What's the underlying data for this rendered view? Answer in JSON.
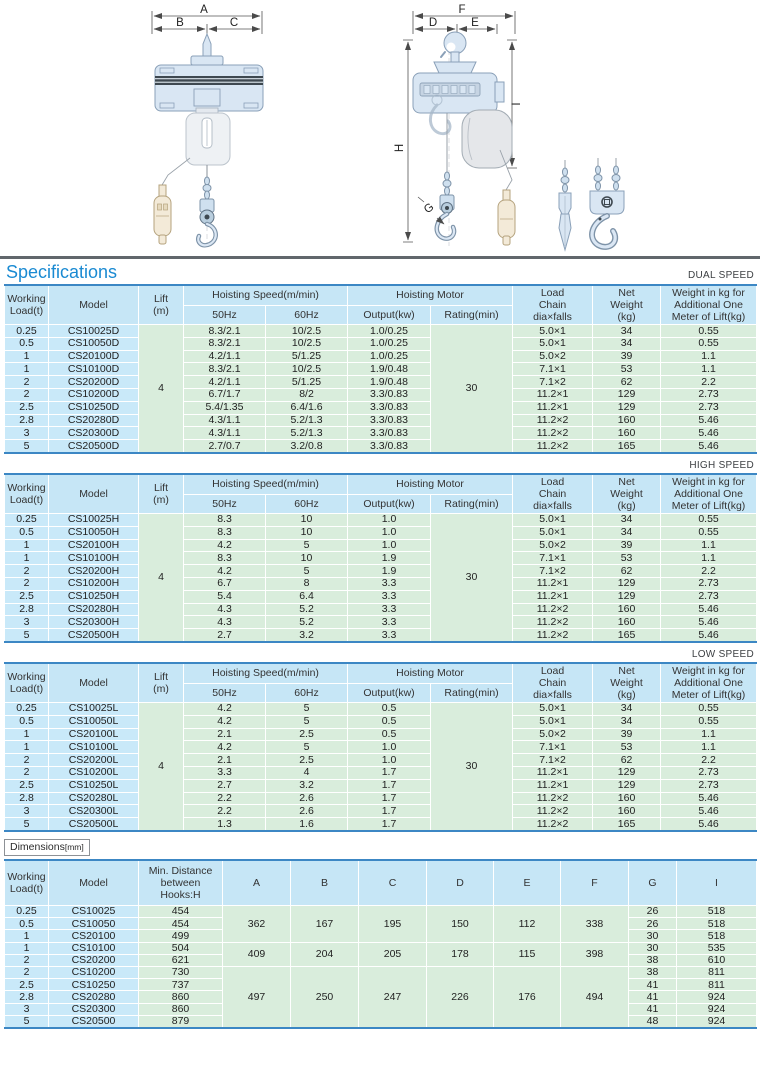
{
  "page": {
    "title": "Specifications",
    "dimensions_label": "Dimensions",
    "dimensions_unit": "[mm]"
  },
  "drawings": {
    "front": {
      "dim_total": "A",
      "dim_left": "B",
      "dim_right": "C"
    },
    "side": {
      "dim_total": "F",
      "dim_left": "D",
      "dim_right": "E",
      "dim_height": "H",
      "dim_side": "I",
      "dim_hook": "G"
    }
  },
  "spec_header": {
    "working_load": "Working Load(t)",
    "model": "Model",
    "lift": "Lift (m)",
    "hoisting_speed": "Hoisting Speed(m/min)",
    "hz50": "50Hz",
    "hz60": "60Hz",
    "hoisting_motor": "Hoisting Motor",
    "output": "Output(kw)",
    "rating": "Rating(min)",
    "load_chain": "Load Chain dia×falls",
    "net_weight": "Net Weight (kg)",
    "weight_additional": "Weight in kg for Additional One Meter of Lift(kg)"
  },
  "spec_tables": [
    {
      "id": "dual",
      "badge": "DUAL SPEED",
      "lift": "4",
      "rating": "30",
      "rows": [
        [
          "0.25",
          "CS10025D",
          "8.3/2.1",
          "10/2.5",
          "1.0/0.25",
          "5.0×1",
          "34",
          "0.55"
        ],
        [
          "0.5",
          "CS10050D",
          "8.3/2.1",
          "10/2.5",
          "1.0/0.25",
          "5.0×1",
          "34",
          "0.55"
        ],
        [
          "1",
          "CS20100D",
          "4.2/1.1",
          "5/1.25",
          "1.0/0.25",
          "5.0×2",
          "39",
          "1.1"
        ],
        [
          "1",
          "CS10100D",
          "8.3/2.1",
          "10/2.5",
          "1.9/0.48",
          "7.1×1",
          "53",
          "1.1"
        ],
        [
          "2",
          "CS20200D",
          "4.2/1.1",
          "5/1.25",
          "1.9/0.48",
          "7.1×2",
          "62",
          "2.2"
        ],
        [
          "2",
          "CS10200D",
          "6.7/1.7",
          "8/2",
          "3.3/0.83",
          "11.2×1",
          "129",
          "2.73"
        ],
        [
          "2.5",
          "CS10250D",
          "5.4/1.35",
          "6.4/1.6",
          "3.3/0.83",
          "11.2×1",
          "129",
          "2.73"
        ],
        [
          "2.8",
          "CS20280D",
          "4.3/1.1",
          "5.2/1.3",
          "3.3/0.83",
          "11.2×2",
          "160",
          "5.46"
        ],
        [
          "3",
          "CS20300D",
          "4.3/1.1",
          "5.2/1.3",
          "3.3/0.83",
          "11.2×2",
          "160",
          "5.46"
        ],
        [
          "5",
          "CS20500D",
          "2.7/0.7",
          "3.2/0.8",
          "3.3/0.83",
          "11.2×2",
          "165",
          "5.46"
        ]
      ]
    },
    {
      "id": "high",
      "badge": "HIGH SPEED",
      "lift": "4",
      "rating": "30",
      "rows": [
        [
          "0.25",
          "CS10025H",
          "8.3",
          "10",
          "1.0",
          "5.0×1",
          "34",
          "0.55"
        ],
        [
          "0.5",
          "CS10050H",
          "8.3",
          "10",
          "1.0",
          "5.0×1",
          "34",
          "0.55"
        ],
        [
          "1",
          "CS20100H",
          "4.2",
          "5",
          "1.0",
          "5.0×2",
          "39",
          "1.1"
        ],
        [
          "1",
          "CS10100H",
          "8.3",
          "10",
          "1.9",
          "7.1×1",
          "53",
          "1.1"
        ],
        [
          "2",
          "CS20200H",
          "4.2",
          "5",
          "1.9",
          "7.1×2",
          "62",
          "2.2"
        ],
        [
          "2",
          "CS10200H",
          "6.7",
          "8",
          "3.3",
          "11.2×1",
          "129",
          "2.73"
        ],
        [
          "2.5",
          "CS10250H",
          "5.4",
          "6.4",
          "3.3",
          "11.2×1",
          "129",
          "2.73"
        ],
        [
          "2.8",
          "CS20280H",
          "4.3",
          "5.2",
          "3.3",
          "11.2×2",
          "160",
          "5.46"
        ],
        [
          "3",
          "CS20300H",
          "4.3",
          "5.2",
          "3.3",
          "11.2×2",
          "160",
          "5.46"
        ],
        [
          "5",
          "CS20500H",
          "2.7",
          "3.2",
          "3.3",
          "11.2×2",
          "165",
          "5.46"
        ]
      ]
    },
    {
      "id": "low",
      "badge": "LOW SPEED",
      "lift": "4",
      "rating": "30",
      "rows": [
        [
          "0.25",
          "CS10025L",
          "4.2",
          "5",
          "0.5",
          "5.0×1",
          "34",
          "0.55"
        ],
        [
          "0.5",
          "CS10050L",
          "4.2",
          "5",
          "0.5",
          "5.0×1",
          "34",
          "0.55"
        ],
        [
          "1",
          "CS20100L",
          "2.1",
          "2.5",
          "0.5",
          "5.0×2",
          "39",
          "1.1"
        ],
        [
          "1",
          "CS10100L",
          "4.2",
          "5",
          "1.0",
          "7.1×1",
          "53",
          "1.1"
        ],
        [
          "2",
          "CS20200L",
          "2.1",
          "2.5",
          "1.0",
          "7.1×2",
          "62",
          "2.2"
        ],
        [
          "2",
          "CS10200L",
          "3.3",
          "4",
          "1.7",
          "11.2×1",
          "129",
          "2.73"
        ],
        [
          "2.5",
          "CS10250L",
          "2.7",
          "3.2",
          "1.7",
          "11.2×1",
          "129",
          "2.73"
        ],
        [
          "2.8",
          "CS20280L",
          "2.2",
          "2.6",
          "1.7",
          "11.2×2",
          "160",
          "5.46"
        ],
        [
          "3",
          "CS20300L",
          "2.2",
          "2.6",
          "1.7",
          "11.2×2",
          "160",
          "5.46"
        ],
        [
          "5",
          "CS20500L",
          "1.3",
          "1.6",
          "1.7",
          "11.2×2",
          "165",
          "5.46"
        ]
      ]
    }
  ],
  "dim_header": {
    "working_load": "Working Load(t)",
    "model": "Model",
    "min_distance": "Min. Distance between Hooks:H",
    "a": "A",
    "b": "B",
    "c": "C",
    "d": "D",
    "e": "E",
    "f": "F",
    "g": "G",
    "i": "I"
  },
  "dimensions": {
    "groups": [
      {
        "abcdef": [
          "362",
          "167",
          "195",
          "150",
          "112",
          "338"
        ],
        "rows": [
          {
            "load": "0.25",
            "model": "CS10025",
            "h": "454",
            "g": "26",
            "i": "518"
          },
          {
            "load": "0.5",
            "model": "CS10050",
            "h": "454",
            "g": "26",
            "i": "518"
          },
          {
            "load": "1",
            "model": "CS20100",
            "h": "499",
            "g": "30",
            "i": "518"
          }
        ]
      },
      {
        "abcdef": [
          "409",
          "204",
          "205",
          "178",
          "115",
          "398"
        ],
        "rows": [
          {
            "load": "1",
            "model": "CS10100",
            "h": "504",
            "g": "30",
            "i": "535"
          },
          {
            "load": "2",
            "model": "CS20200",
            "h": "621",
            "g": "38",
            "i": "610"
          }
        ]
      },
      {
        "abcdef": [
          "497",
          "250",
          "247",
          "226",
          "176",
          "494"
        ],
        "rows": [
          {
            "load": "2",
            "model": "CS10200",
            "h": "730",
            "g": "38",
            "i": "811"
          },
          {
            "load": "2.5",
            "model": "CS10250",
            "h": "737",
            "g": "41",
            "i": "811"
          },
          {
            "load": "2.8",
            "model": "CS20280",
            "h": "860",
            "g": "41",
            "i": "924"
          },
          {
            "load": "3",
            "model": "CS20300",
            "h": "860",
            "g": "41",
            "i": "924"
          },
          {
            "load": "5",
            "model": "CS20500",
            "h": "879",
            "g": "48",
            "i": "924"
          }
        ]
      }
    ]
  },
  "colors": {
    "accent_blue": "#1a8ad2",
    "header_cell_blue": "#c6e6f6",
    "data_cell_blue": "#c9e9f9",
    "data_cell_green": "#d9eddc",
    "table_border_blue": "#3c87c4",
    "separator_gray": "#61676c"
  }
}
